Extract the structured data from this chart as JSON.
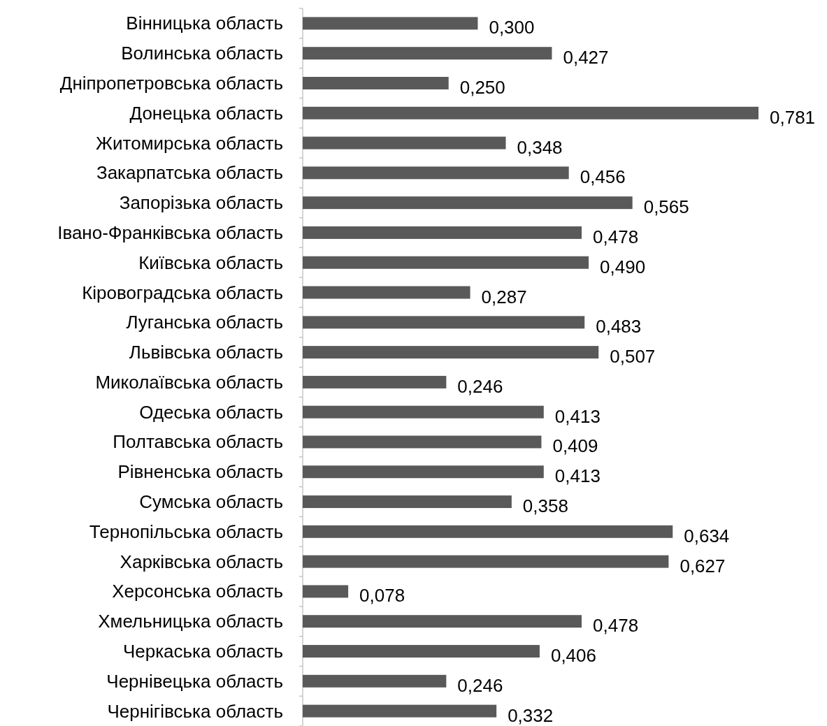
{
  "chart_data": {
    "type": "bar",
    "orientation": "horizontal",
    "categories": [
      "Вінницька область",
      "Волинська область",
      "Дніпропетровська область",
      "Донецька область",
      "Житомирська область",
      "Закарпатська область",
      "Запорізька область",
      "Івано-Франківська область",
      "Київська область",
      "Кіровоградська область",
      "Луганська область",
      "Львівська область",
      "Миколаївська область",
      "Одеська область",
      "Полтавська область",
      "Рівненська область",
      "Сумська область",
      "Тернопільська область",
      "Харківська область",
      "Херсонська область",
      "Хмельницька область",
      "Черкаська область",
      "Чернівецька область",
      "Чернігівська область"
    ],
    "values": [
      0.3,
      0.427,
      0.25,
      0.781,
      0.348,
      0.456,
      0.565,
      0.478,
      0.49,
      0.287,
      0.483,
      0.507,
      0.246,
      0.413,
      0.409,
      0.413,
      0.358,
      0.634,
      0.627,
      0.078,
      0.478,
      0.406,
      0.246,
      0.332
    ],
    "value_labels": [
      "0,300",
      "0,427",
      "0,250",
      "0,781",
      "0,348",
      "0,456",
      "0,565",
      "0,478",
      "0,490",
      "0,287",
      "0,483",
      "0,507",
      "0,246",
      "0,413",
      "0,409",
      "0,413",
      "0,358",
      "0,634",
      "0,627",
      "0,078",
      "0,478",
      "0,406",
      "0,246",
      "0,332"
    ],
    "color": "#595959"
  }
}
